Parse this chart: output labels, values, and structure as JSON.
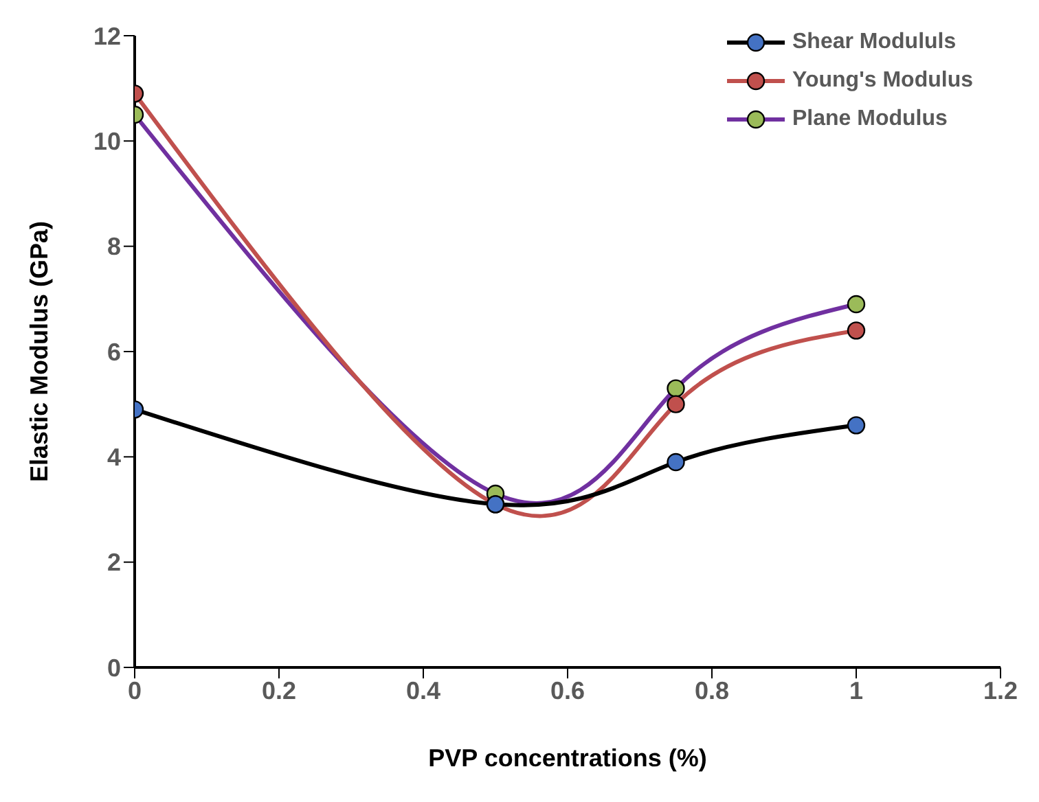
{
  "chart_data": {
    "type": "line",
    "xlabel": "PVP concentrations (%)",
    "ylabel": "Elastic Modulus (GPa)",
    "x": [
      0,
      0.5,
      0.75,
      1
    ],
    "series": [
      {
        "name": "Shear Modululs",
        "color": "#000000",
        "colors": [
          "#4472c4",
          "#4472c4",
          "#4472c4",
          "#4472c4"
        ],
        "values": [
          4.9,
          3.1,
          3.9,
          4.6
        ]
      },
      {
        "name": "Young's Modulus",
        "color": "#c0504d",
        "colors": [
          "#c0504d",
          "#c0504d",
          "#c0504d",
          "#c0504d"
        ],
        "values": [
          10.9,
          3.1,
          5.0,
          6.4
        ]
      },
      {
        "name": "Plane Modulus",
        "color": "#7030a0",
        "colors": [
          "#9bbb59",
          "#9bbb59",
          "#9bbb59",
          "#9bbb59"
        ],
        "values": [
          10.5,
          3.3,
          5.3,
          6.9
        ]
      }
    ],
    "xlim": [
      0,
      1.2
    ],
    "xticks": [
      0,
      0.2,
      0.4,
      0.6,
      0.8,
      1,
      1.2
    ],
    "ylim": [
      0,
      12
    ],
    "yticks": [
      0,
      2,
      4,
      6,
      8,
      10,
      12
    ],
    "grid": false,
    "legend": "top right",
    "marker": "circle",
    "line_style": "solid"
  }
}
